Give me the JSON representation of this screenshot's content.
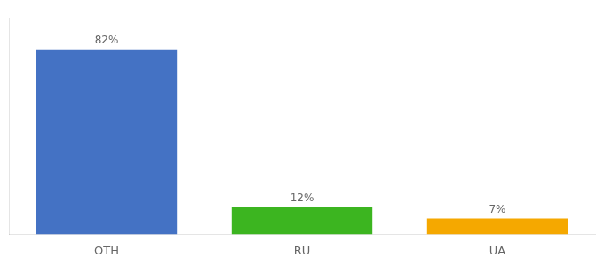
{
  "chart_data": {
    "type": "bar",
    "categories": [
      "OTH",
      "RU",
      "UA"
    ],
    "values": [
      82,
      12,
      7
    ],
    "value_labels": [
      "82%",
      "12%",
      "7%"
    ],
    "colors": [
      "#4472c4",
      "#3cb520",
      "#f5a800"
    ],
    "ylim": [
      0,
      96
    ],
    "data_labels": true,
    "tick_labels": "x",
    "grid": false
  }
}
